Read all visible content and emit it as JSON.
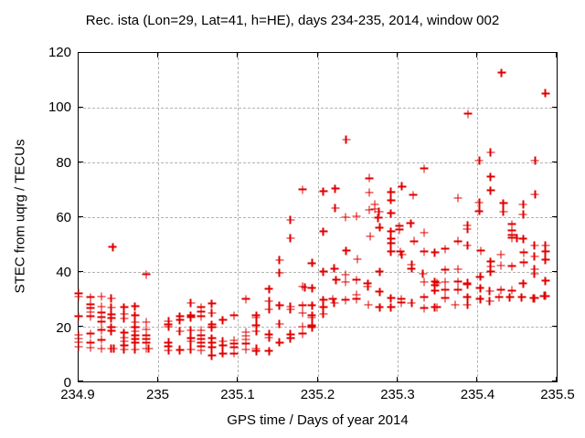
{
  "chart_data": {
    "type": "scatter",
    "title": "Rec. ista (Lon=29, Lat=41, h=HE), days 234-235, 2014, window 002",
    "xlabel": "GPS time / Days of year 2014",
    "ylabel": "STEC from uqrg / TECUs",
    "xlim": [
      234.9,
      235.5
    ],
    "ylim": [
      0,
      120
    ],
    "xticks": [
      234.9,
      235.0,
      235.1,
      235.2,
      235.3,
      235.4,
      235.5
    ],
    "xtick_labels": [
      "234.9",
      "235",
      "235.1",
      "235.2",
      "235.3",
      "235.4",
      "235.5"
    ],
    "yticks": [
      0,
      20,
      40,
      60,
      80,
      100,
      120
    ],
    "ytick_labels": [
      "0",
      "20",
      "40",
      "60",
      "80",
      "100",
      "120"
    ],
    "grid": true,
    "legend": "none",
    "marker": "plus",
    "marker_color": "#e00000",
    "marker_size": 9,
    "points": [
      [
        234.9,
        32.2
      ],
      [
        234.9,
        30.9
      ],
      [
        234.9,
        23.7
      ],
      [
        234.9,
        17.0
      ],
      [
        234.9,
        15.6
      ],
      [
        234.9,
        14.3
      ],
      [
        234.9,
        12.6
      ],
      [
        234.915,
        30.7
      ],
      [
        234.915,
        28.1
      ],
      [
        234.915,
        26.7
      ],
      [
        234.915,
        25.3
      ],
      [
        234.915,
        23.7
      ],
      [
        234.915,
        17.4
      ],
      [
        234.915,
        14.1
      ],
      [
        234.915,
        12.3
      ],
      [
        234.929,
        30.9
      ],
      [
        234.929,
        27.3
      ],
      [
        234.929,
        25.1
      ],
      [
        234.929,
        23.4
      ],
      [
        234.929,
        21.8
      ],
      [
        234.929,
        18.7
      ],
      [
        234.929,
        15.2
      ],
      [
        234.929,
        11.9
      ],
      [
        234.941,
        30.3
      ],
      [
        234.941,
        27.0
      ],
      [
        234.941,
        24.5
      ],
      [
        234.941,
        23.1
      ],
      [
        234.941,
        19.8
      ],
      [
        234.941,
        18.5
      ],
      [
        234.941,
        11.9
      ],
      [
        234.943,
        49.1
      ],
      [
        234.944,
        11.9
      ],
      [
        234.957,
        27.1
      ],
      [
        234.957,
        24.6
      ],
      [
        234.957,
        23.0
      ],
      [
        234.957,
        17.7
      ],
      [
        234.957,
        16.0
      ],
      [
        234.957,
        14.6
      ],
      [
        234.957,
        13.1
      ],
      [
        234.957,
        11.6
      ],
      [
        234.971,
        27.5
      ],
      [
        234.971,
        24.1
      ],
      [
        234.971,
        21.6
      ],
      [
        234.971,
        19.7
      ],
      [
        234.971,
        18.3
      ],
      [
        234.971,
        16.8
      ],
      [
        234.971,
        15.5
      ],
      [
        234.971,
        14.2
      ],
      [
        234.971,
        11.6
      ],
      [
        234.985,
        39.1
      ],
      [
        234.985,
        21.6
      ],
      [
        234.985,
        19.0
      ],
      [
        234.985,
        16.8
      ],
      [
        234.985,
        15.5
      ],
      [
        234.985,
        14.2
      ],
      [
        234.985,
        12.0
      ],
      [
        234.988,
        12.0
      ],
      [
        235.013,
        21.9
      ],
      [
        235.013,
        20.8
      ],
      [
        235.013,
        19.9
      ],
      [
        235.013,
        14.2
      ],
      [
        235.013,
        12.7
      ],
      [
        235.013,
        11.3
      ],
      [
        235.027,
        23.8
      ],
      [
        235.027,
        22.4
      ],
      [
        235.027,
        18.3
      ],
      [
        235.027,
        11.6
      ],
      [
        235.027,
        11.3
      ],
      [
        235.041,
        28.6
      ],
      [
        235.041,
        24.1
      ],
      [
        235.041,
        23.5
      ],
      [
        235.041,
        18.6
      ],
      [
        235.041,
        15.7
      ],
      [
        235.041,
        14.6
      ],
      [
        235.041,
        11.6
      ],
      [
        235.054,
        27.1
      ],
      [
        235.054,
        25.5
      ],
      [
        235.054,
        23.8
      ],
      [
        235.054,
        18.6
      ],
      [
        235.054,
        16.8
      ],
      [
        235.054,
        15.5
      ],
      [
        235.054,
        14.2
      ],
      [
        235.054,
        12.7
      ],
      [
        235.054,
        11.3
      ],
      [
        235.067,
        28.5
      ],
      [
        235.067,
        24.9
      ],
      [
        235.067,
        20.8
      ],
      [
        235.067,
        19.7
      ],
      [
        235.067,
        15.7
      ],
      [
        235.067,
        14.2
      ],
      [
        235.067,
        12.4
      ],
      [
        235.067,
        9.4
      ],
      [
        235.081,
        22.4
      ],
      [
        235.081,
        14.6
      ],
      [
        235.081,
        13.1
      ],
      [
        235.081,
        10.2
      ],
      [
        235.095,
        24.1
      ],
      [
        235.095,
        15.0
      ],
      [
        235.095,
        13.8
      ],
      [
        235.095,
        12.4
      ],
      [
        235.095,
        10.2
      ],
      [
        235.11,
        30.1
      ],
      [
        235.11,
        17.9
      ],
      [
        235.11,
        16.6
      ],
      [
        235.11,
        15.3
      ],
      [
        235.11,
        13.8
      ],
      [
        235.11,
        11.6
      ],
      [
        235.123,
        24.1
      ],
      [
        235.123,
        23.3
      ],
      [
        235.123,
        20.5
      ],
      [
        235.123,
        18.3
      ],
      [
        235.123,
        12.0
      ],
      [
        235.123,
        11.1
      ],
      [
        235.139,
        33.8
      ],
      [
        235.139,
        29.3
      ],
      [
        235.139,
        26.3
      ],
      [
        235.139,
        17.2
      ],
      [
        235.139,
        16.0
      ],
      [
        235.139,
        11.1
      ],
      [
        235.152,
        44.3
      ],
      [
        235.152,
        39.6
      ],
      [
        235.152,
        27.7
      ],
      [
        235.152,
        21.0
      ],
      [
        235.152,
        14.2
      ],
      [
        235.166,
        58.9
      ],
      [
        235.166,
        52.3
      ],
      [
        235.166,
        27.3
      ],
      [
        235.166,
        26.3
      ],
      [
        235.166,
        17.2
      ],
      [
        235.166,
        15.7
      ],
      [
        235.181,
        70.1
      ],
      [
        235.181,
        34.6
      ],
      [
        235.184,
        34.3
      ],
      [
        235.181,
        27.7
      ],
      [
        235.181,
        24.9
      ],
      [
        235.181,
        19.9
      ],
      [
        235.181,
        17.5
      ],
      [
        235.193,
        43.2
      ],
      [
        235.193,
        34.1
      ],
      [
        235.193,
        27.7
      ],
      [
        235.193,
        24.1
      ],
      [
        235.193,
        23.3
      ],
      [
        235.193,
        20.5
      ],
      [
        235.193,
        19.7
      ],
      [
        235.207,
        69.5
      ],
      [
        235.207,
        54.8
      ],
      [
        235.207,
        40.1
      ],
      [
        235.207,
        29.7
      ],
      [
        235.207,
        27.1
      ],
      [
        235.207,
        24.6
      ],
      [
        235.219,
        30.1
      ],
      [
        235.221,
        41.2
      ],
      [
        235.221,
        28.6
      ],
      [
        235.223,
        37.1
      ],
      [
        235.222,
        70.5
      ],
      [
        235.222,
        63.3
      ],
      [
        235.235,
        59.9
      ],
      [
        235.236,
        47.8
      ],
      [
        235.235,
        39.0
      ],
      [
        235.235,
        36.3
      ],
      [
        235.235,
        29.7
      ],
      [
        235.236,
        88.3
      ],
      [
        235.249,
        60.3
      ],
      [
        235.25,
        44.6
      ],
      [
        235.249,
        37.1
      ],
      [
        235.249,
        31.6
      ],
      [
        235.249,
        30.1
      ],
      [
        235.263,
        35.7
      ],
      [
        235.263,
        34.6
      ],
      [
        235.264,
        27.9
      ],
      [
        235.265,
        74.2
      ],
      [
        235.265,
        68.9
      ],
      [
        235.265,
        62.6
      ],
      [
        235.266,
        52.9
      ],
      [
        235.272,
        64.6
      ],
      [
        235.272,
        62.9
      ],
      [
        235.276,
        59.8
      ],
      [
        235.277,
        62.0
      ],
      [
        235.278,
        56.2
      ],
      [
        235.278,
        40.1
      ],
      [
        235.278,
        32.7
      ],
      [
        235.278,
        27.1
      ],
      [
        235.292,
        69.2
      ],
      [
        235.292,
        66.2
      ],
      [
        235.292,
        61.5
      ],
      [
        235.292,
        54.8
      ],
      [
        235.292,
        52.1
      ],
      [
        235.292,
        50.4
      ],
      [
        235.292,
        47.4
      ],
      [
        235.292,
        30.5
      ],
      [
        235.292,
        27.1
      ],
      [
        235.303,
        56.7
      ],
      [
        235.303,
        55.5
      ],
      [
        235.304,
        47.4
      ],
      [
        235.305,
        30.1
      ],
      [
        235.305,
        28.8
      ],
      [
        235.306,
        71.2
      ],
      [
        235.306,
        46.3
      ],
      [
        235.317,
        57.8
      ],
      [
        235.318,
        42.6
      ],
      [
        235.318,
        41.2
      ],
      [
        235.318,
        28.6
      ],
      [
        235.32,
        68.1
      ],
      [
        235.321,
        51.2
      ],
      [
        235.334,
        77.8
      ],
      [
        235.334,
        54.3
      ],
      [
        235.334,
        47.4
      ],
      [
        235.332,
        39.3
      ],
      [
        235.334,
        36.3
      ],
      [
        235.334,
        30.8
      ],
      [
        235.334,
        26.8
      ],
      [
        235.347,
        47.1
      ],
      [
        235.347,
        36.5
      ],
      [
        235.347,
        35.2
      ],
      [
        235.347,
        33.2
      ],
      [
        235.347,
        27.1
      ],
      [
        235.35,
        36.0
      ],
      [
        235.35,
        27.1
      ],
      [
        235.36,
        48.5
      ],
      [
        235.36,
        40.8
      ],
      [
        235.36,
        36.3
      ],
      [
        235.36,
        33.4
      ],
      [
        235.36,
        30.5
      ],
      [
        235.373,
        27.9
      ],
      [
        235.376,
        67.0
      ],
      [
        235.376,
        51.2
      ],
      [
        235.376,
        41.0
      ],
      [
        235.376,
        36.5
      ],
      [
        235.376,
        33.4
      ],
      [
        235.388,
        57.0
      ],
      [
        235.388,
        55.6
      ],
      [
        235.388,
        49.6
      ],
      [
        235.388,
        35.9
      ],
      [
        235.388,
        35.4
      ],
      [
        235.388,
        30.8
      ],
      [
        235.388,
        27.9
      ],
      [
        235.389,
        97.8
      ],
      [
        235.403,
        80.6
      ],
      [
        235.403,
        65.3
      ],
      [
        235.403,
        62.2
      ],
      [
        235.404,
        38.2
      ],
      [
        235.404,
        34.1
      ],
      [
        235.404,
        30.1
      ],
      [
        235.405,
        47.8
      ],
      [
        235.416,
        33.0
      ],
      [
        235.416,
        29.3
      ],
      [
        235.417,
        83.6
      ],
      [
        235.417,
        74.8
      ],
      [
        235.417,
        69.8
      ],
      [
        235.417,
        43.7
      ],
      [
        235.417,
        41.9
      ],
      [
        235.417,
        40.1
      ],
      [
        235.428,
        30.8
      ],
      [
        235.43,
        46.3
      ],
      [
        235.43,
        42.3
      ],
      [
        235.43,
        33.4
      ],
      [
        235.431,
        112.7
      ],
      [
        235.433,
        65.1
      ],
      [
        235.433,
        62.0
      ],
      [
        235.441,
        30.8
      ],
      [
        235.444,
        57.4
      ],
      [
        235.444,
        55.1
      ],
      [
        235.444,
        53.5
      ],
      [
        235.444,
        52.5
      ],
      [
        235.444,
        42.1
      ],
      [
        235.444,
        33.2
      ],
      [
        235.45,
        52.3
      ],
      [
        235.456,
        30.8
      ],
      [
        235.458,
        64.6
      ],
      [
        235.458,
        60.9
      ],
      [
        235.458,
        52.1
      ],
      [
        235.458,
        35.7
      ],
      [
        235.459,
        47.1
      ],
      [
        235.459,
        43.4
      ],
      [
        235.471,
        30.5
      ],
      [
        235.472,
        49.6
      ],
      [
        235.472,
        45.6
      ],
      [
        235.472,
        41.0
      ],
      [
        235.472,
        39.3
      ],
      [
        235.472,
        30.5
      ],
      [
        235.473,
        80.6
      ],
      [
        235.473,
        68.3
      ],
      [
        235.484,
        31.2
      ],
      [
        235.486,
        105.2
      ],
      [
        235.486,
        49.6
      ],
      [
        235.486,
        47.4
      ],
      [
        235.486,
        44.5
      ],
      [
        235.486,
        36.8
      ],
      [
        235.486,
        31.2
      ]
    ]
  }
}
